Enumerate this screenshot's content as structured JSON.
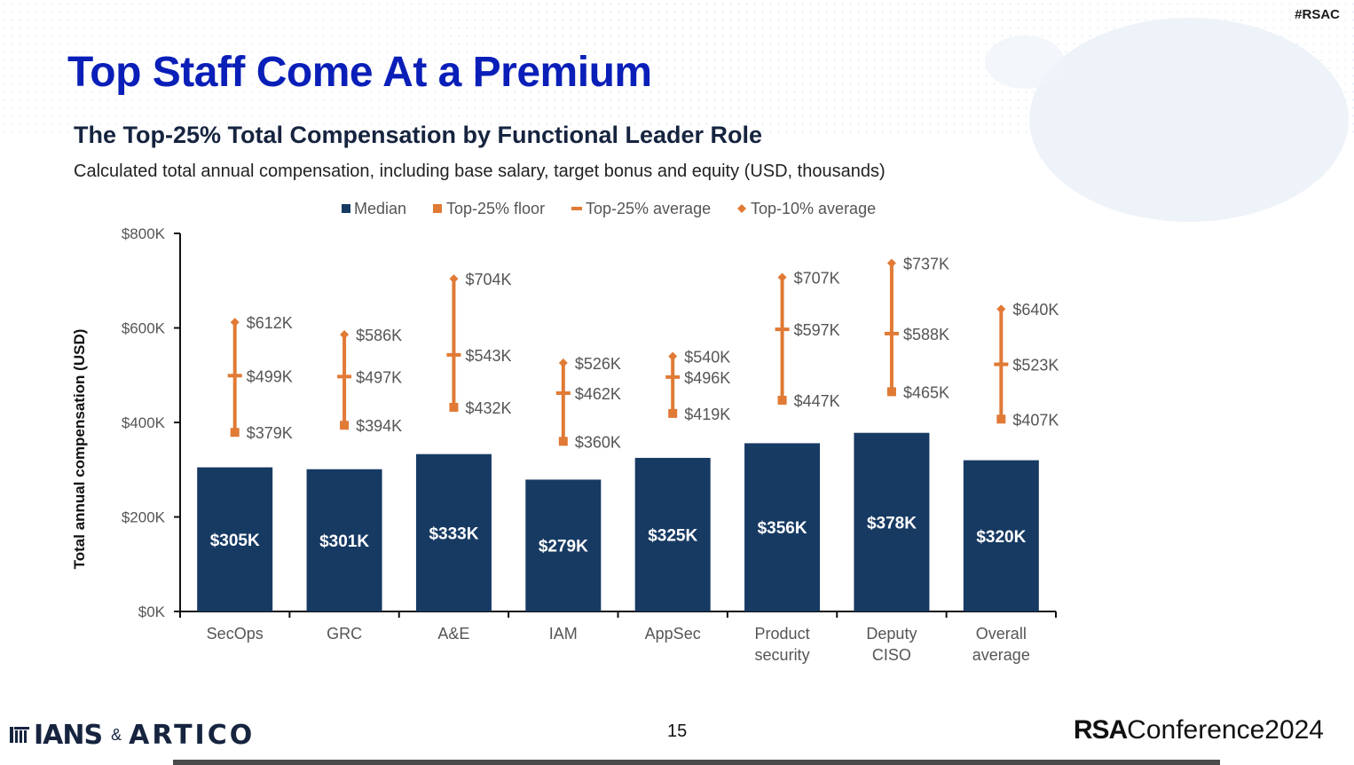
{
  "header": {
    "hashtag": "#RSAC",
    "title": "Top Staff Come At a Premium"
  },
  "footer": {
    "logo_left": "IANS",
    "logo_amp": "&",
    "logo_right": "ARTICO",
    "page_number": "15",
    "rsa_logo_bold": "RSA",
    "rsa_logo_light": "Conference2024"
  },
  "colors": {
    "median": "#173a63",
    "top25": "#e07a35",
    "title": "#0a1fb8",
    "axis": "#111111",
    "label": "#555555"
  },
  "chart_data": {
    "type": "bar",
    "title": "The Top-25% Total Compensation by Functional Leader Role",
    "subtitle": "Calculated total annual compensation, including base salary, target bonus and equity (USD, thousands)",
    "ylabel": "Total annual compensation (USD)",
    "xlabel": "",
    "ylim": [
      0,
      800
    ],
    "yticks": [
      "$0K",
      "$200K",
      "$400K",
      "$600K",
      "$800K"
    ],
    "ytick_values": [
      0,
      200,
      400,
      600,
      800
    ],
    "legend_position": "top",
    "legend": [
      {
        "label": "Median",
        "marker": "square"
      },
      {
        "label": "Top-25% floor",
        "marker": "square"
      },
      {
        "label": "Top-25% average",
        "marker": "dash"
      },
      {
        "label": "Top-10% average",
        "marker": "diamond"
      }
    ],
    "categories": [
      [
        "SecOps"
      ],
      [
        "GRC"
      ],
      [
        "A&E"
      ],
      [
        "IAM"
      ],
      [
        "AppSec"
      ],
      [
        "Product",
        "security"
      ],
      [
        "Deputy",
        "CISO"
      ],
      [
        "Overall",
        "average"
      ]
    ],
    "series": [
      {
        "name": "Median",
        "values": [
          305,
          301,
          333,
          279,
          325,
          356,
          378,
          320
        ],
        "labels": [
          "$305K",
          "$301K",
          "$333K",
          "$279K",
          "$325K",
          "$356K",
          "$378K",
          "$320K"
        ]
      },
      {
        "name": "Top-25% floor",
        "values": [
          379,
          394,
          432,
          360,
          419,
          447,
          465,
          407
        ],
        "labels": [
          "$379K",
          "$394K",
          "$432K",
          "$360K",
          "$419K",
          "$447K",
          "$465K",
          "$407K"
        ]
      },
      {
        "name": "Top-25% average",
        "values": [
          499,
          497,
          543,
          462,
          496,
          597,
          588,
          523
        ],
        "labels": [
          "$499K",
          "$497K",
          "$543K",
          "$462K",
          "$496K",
          "$597K",
          "$588K",
          "$523K"
        ]
      },
      {
        "name": "Top-10% average",
        "values": [
          612,
          586,
          704,
          526,
          540,
          707,
          737,
          640
        ],
        "labels": [
          "$612K",
          "$586K",
          "$704K",
          "$526K",
          "$540K",
          "$707K",
          "$737K",
          "$640K"
        ]
      }
    ]
  }
}
